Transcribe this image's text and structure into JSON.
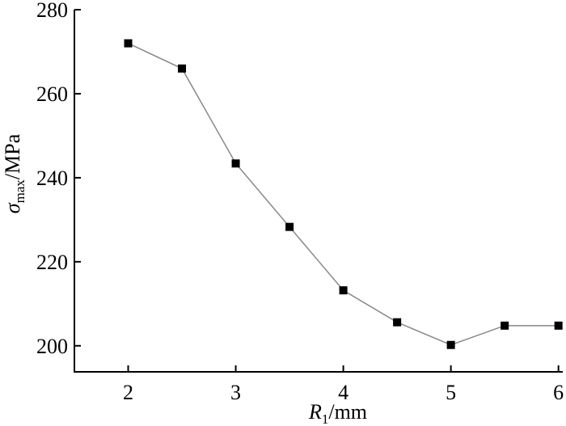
{
  "chart_data": {
    "type": "line",
    "x": [
      2,
      2.5,
      3,
      3.5,
      4,
      4.5,
      5,
      5.5,
      6
    ],
    "series": [
      {
        "color": "#888888",
        "marker_color": "#000000",
        "values": [
          272,
          266,
          243.4,
          228.3,
          213.2,
          205.6,
          200.2,
          204.8,
          204.8
        ]
      }
    ],
    "xlim": [
      1.5,
      6.04
    ],
    "xticks": [
      2,
      3,
      4,
      5,
      6
    ],
    "ylim": [
      193.8,
      280
    ],
    "yticks": [
      200,
      220,
      240,
      260,
      280
    ],
    "xlabel": {
      "symbol": "R",
      "subscript": "1",
      "unit": "/mm"
    },
    "ylabel": {
      "symbol": "σ",
      "subscript": "max",
      "unit": "/MPa"
    },
    "grid": false
  }
}
